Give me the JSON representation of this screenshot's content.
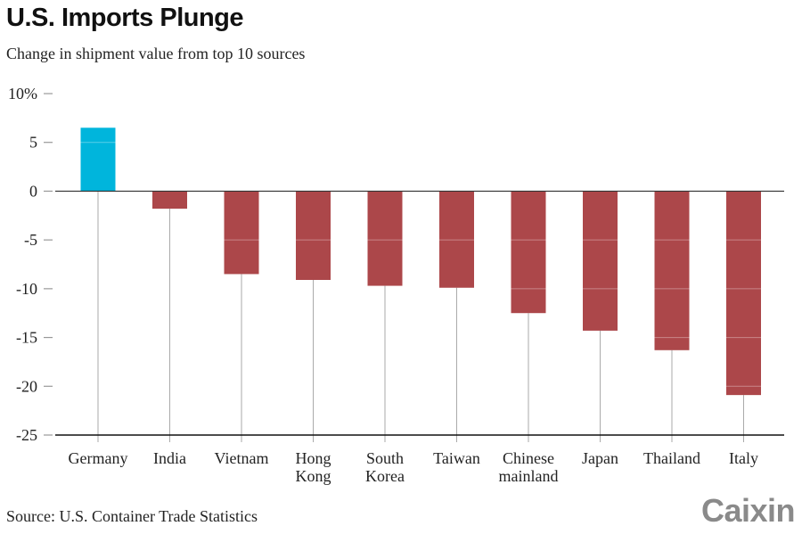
{
  "chart_data": {
    "type": "bar",
    "title": "U.S. Imports Plunge",
    "subtitle": "Change in shipment value from top 10 sources",
    "xlabel": "",
    "ylabel": "",
    "ylim": [
      -25,
      10
    ],
    "yticks": [
      10,
      5,
      0,
      -5,
      -10,
      -15,
      -20,
      -25
    ],
    "ytick_labels": [
      "10%",
      "5",
      "0",
      "-5",
      "-10",
      "-15",
      "-20",
      "-25"
    ],
    "categories": [
      "Germany",
      "India",
      "Vietnam",
      "Hong Kong",
      "South Korea",
      "Taiwan",
      "Chinese mainland",
      "Japan",
      "Thailand",
      "Italy"
    ],
    "category_lines": [
      [
        "Germany"
      ],
      [
        "India"
      ],
      [
        "Vietnam"
      ],
      [
        "Hong",
        "Kong"
      ],
      [
        "South",
        "Korea"
      ],
      [
        "Taiwan"
      ],
      [
        "Chinese",
        "mainland"
      ],
      [
        "Japan"
      ],
      [
        "Thailand"
      ],
      [
        "Italy"
      ]
    ],
    "values": [
      6.5,
      -1.8,
      -8.5,
      -9.1,
      -9.7,
      -9.9,
      -12.5,
      -14.3,
      -16.3,
      -20.9
    ],
    "colors": {
      "positive": "#00b5dc",
      "negative": "#ac474a",
      "axis": "#333333",
      "stem": "#aaaaaa"
    },
    "grid": false,
    "legend": "none",
    "source": "Source: U.S. Container Trade Statistics"
  },
  "branding": {
    "logo_text": "Caixin"
  }
}
